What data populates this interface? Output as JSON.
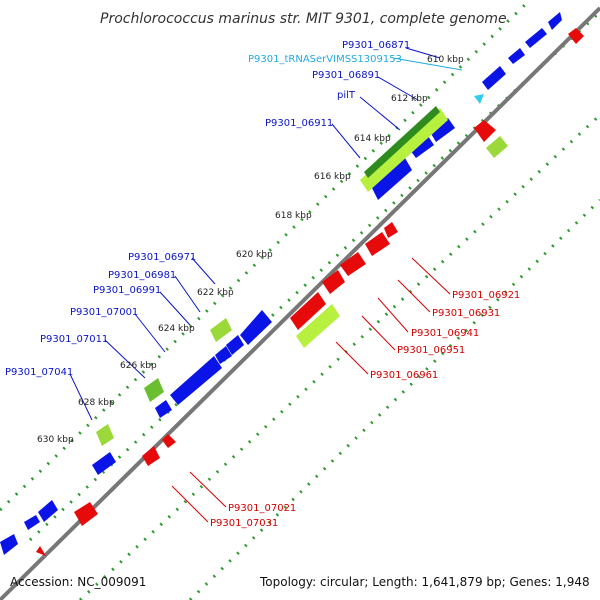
{
  "title": "Prochlorococcus marinus str. MIT 9301, complete genome",
  "footer": {
    "accession": "Accession: NC_009091",
    "summary": "Topology: circular; Length: 1,641,879 bp; Genes: 1,948"
  },
  "colors": {
    "forward_gene": "#0a14e6",
    "reverse_gene": "#e60a0a",
    "trna": "#33ccee",
    "feature_green_dark": "#2e8b1e",
    "feature_green_light": "#b8f040",
    "backbone": "#777777",
    "tick_dots": "#2f9a2f",
    "forward_label": "#0a14c8",
    "reverse_label": "#d00000",
    "trna_label": "#22aadd"
  },
  "ticks": [
    "610 kbp",
    "612 kbp",
    "614 kbp",
    "616 kbp",
    "618 kbp",
    "620 kbp",
    "622 kbp",
    "624 kbp",
    "626 kbp",
    "628 kbp",
    "630 kbp"
  ],
  "forward_labels": [
    "P9301_06871",
    "P9301_tRNASerVIMSS1309153",
    "P9301_06891",
    "pilT",
    "P9301_06911",
    "P9301_06971",
    "P9301_06981",
    "P9301_06991",
    "P9301_07001",
    "P9301_07011",
    "P9301_07041"
  ],
  "reverse_labels": [
    "P9301_06921",
    "P9301_06931",
    "P9301_06941",
    "P9301_06951",
    "P9301_06961",
    "P9301_07021",
    "P9301_07031"
  ]
}
